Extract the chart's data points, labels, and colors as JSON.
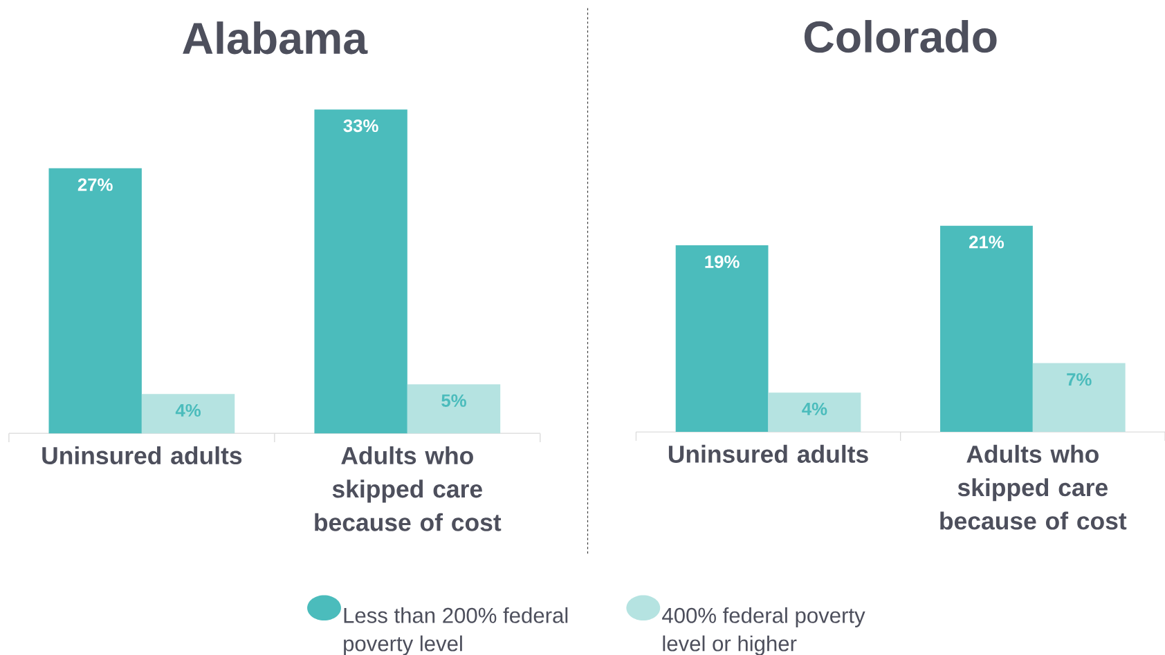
{
  "chart_data": [
    {
      "type": "bar",
      "title": "Alabama",
      "categories": [
        "Uninsured adults",
        "Adults who skipped care because of cost"
      ],
      "tick_labels": "x",
      "legend": "bottom",
      "series": [
        {
          "name": "Less than 200% federal poverty level",
          "color": "#4bbcbc",
          "values": [
            27,
            33
          ],
          "value_labels": [
            "27%",
            "33%"
          ]
        },
        {
          "name": "400% federal poverty level or higher",
          "color": "#b5e3e1",
          "values": [
            4,
            5
          ],
          "value_labels": [
            "4%",
            "5%"
          ]
        }
      ]
    },
    {
      "type": "bar",
      "title": "Colorado",
      "categories": [
        "Uninsured adults",
        "Adults who skipped care because of cost"
      ],
      "tick_labels": "x",
      "series": [
        {
          "color": "#4bbcbc",
          "values": [
            19,
            21
          ],
          "value_labels": [
            "19%",
            "21%"
          ]
        },
        {
          "color": "#b5e3e1",
          "values": [
            4,
            7
          ],
          "value_labels": [
            "4%",
            "7%"
          ]
        }
      ]
    }
  ]
}
